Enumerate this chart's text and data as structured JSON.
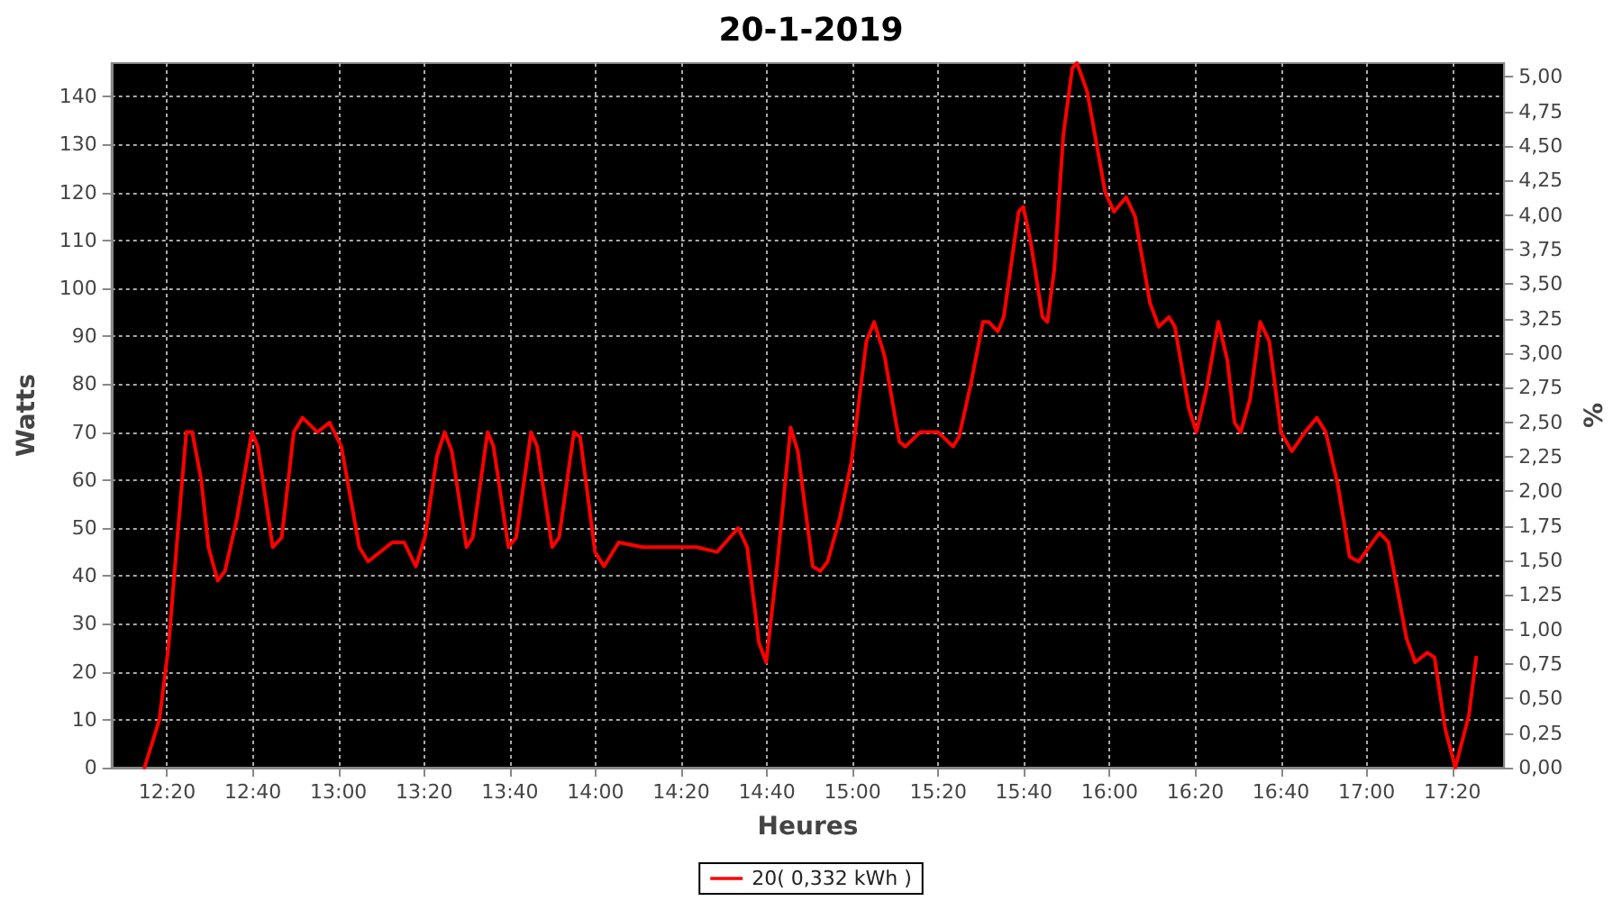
{
  "chart_data": {
    "type": "line",
    "title": "20-1-2019",
    "xlabel": "Heures",
    "ylabel": "Watts",
    "y2label": "%",
    "x": [
      12.245,
      12.303,
      12.338,
      12.373,
      12.408,
      12.431,
      12.466,
      12.494,
      12.53,
      12.558,
      12.605,
      12.663,
      12.686,
      12.744,
      12.779,
      12.826,
      12.86,
      12.918,
      12.965,
      13.011,
      13.081,
      13.115,
      13.209,
      13.255,
      13.301,
      13.336,
      13.383,
      13.413,
      13.441,
      13.498,
      13.522,
      13.58,
      13.603,
      13.661,
      13.691,
      13.749,
      13.773,
      13.831,
      13.858,
      13.916,
      13.94,
      13.998,
      14.033,
      14.09,
      14.184,
      14.393,
      14.473,
      14.555,
      14.59,
      14.636,
      14.664,
      14.706,
      14.759,
      14.787,
      14.845,
      14.875,
      14.903,
      14.95,
      14.996,
      15.054,
      15.084,
      15.124,
      15.182,
      15.205,
      15.263,
      15.333,
      15.391,
      15.414,
      15.46,
      15.507,
      15.53,
      15.565,
      15.588,
      15.646,
      15.664,
      15.692,
      15.739,
      15.758,
      15.785,
      15.82,
      15.855,
      15.873,
      15.913,
      15.983,
      16.017,
      16.064,
      16.099,
      16.157,
      16.191,
      16.231,
      16.254,
      16.308,
      16.338,
      16.377,
      16.423,
      16.458,
      16.486,
      16.51,
      16.547,
      16.586,
      16.621,
      16.667,
      16.709,
      16.76,
      16.806,
      16.841,
      16.888,
      16.934,
      16.969,
      17.05,
      17.085,
      17.155,
      17.189,
      17.236,
      17.264,
      17.306,
      17.345,
      17.398,
      17.426
    ],
    "series": [
      {
        "name": "20( 0,332 kWh )",
        "color": "#ff0000",
        "values": [
          0,
          10,
          25,
          48,
          70,
          70,
          60,
          46,
          39,
          41,
          52,
          70,
          67,
          46,
          48,
          70,
          73,
          70,
          72,
          67,
          46,
          43,
          47,
          47,
          42,
          48,
          65,
          70,
          66,
          46,
          48,
          70,
          67,
          46,
          48,
          70,
          67,
          46,
          48,
          70,
          69,
          45,
          42,
          47,
          46,
          46,
          45,
          50,
          46,
          26,
          22,
          42,
          71,
          66,
          42,
          41,
          43,
          52,
          64,
          89,
          93,
          86,
          68,
          67,
          70,
          70,
          67,
          69,
          80,
          93,
          93,
          91,
          94,
          116,
          117,
          110,
          94,
          93,
          104,
          132,
          146,
          147,
          141,
          120,
          116,
          119,
          115,
          97,
          92,
          94,
          92,
          75,
          70,
          79,
          93,
          85,
          72,
          70,
          77,
          93,
          89,
          70,
          66,
          70,
          73,
          70,
          59,
          44,
          43,
          49,
          47,
          27,
          22,
          24,
          23,
          8,
          0,
          11,
          23
        ]
      }
    ],
    "xlim": [
      12.117,
      17.535
    ],
    "xticks": [
      {
        "value": 12.3333,
        "label": "12:20"
      },
      {
        "value": 12.6667,
        "label": "12:40"
      },
      {
        "value": 13,
        "label": "13:00"
      },
      {
        "value": 13.3333,
        "label": "13:20"
      },
      {
        "value": 13.6667,
        "label": "13:40"
      },
      {
        "value": 14,
        "label": "14:00"
      },
      {
        "value": 14.3333,
        "label": "14:20"
      },
      {
        "value": 14.6667,
        "label": "14:40"
      },
      {
        "value": 15,
        "label": "15:00"
      },
      {
        "value": 15.3333,
        "label": "15:20"
      },
      {
        "value": 15.6667,
        "label": "15:40"
      },
      {
        "value": 16,
        "label": "16:00"
      },
      {
        "value": 16.3333,
        "label": "16:20"
      },
      {
        "value": 16.6667,
        "label": "16:40"
      },
      {
        "value": 17,
        "label": "17:00"
      },
      {
        "value": 17.3333,
        "label": "17:20"
      }
    ],
    "ylim": [
      0,
      147
    ],
    "yticks": [
      0,
      10,
      20,
      30,
      40,
      50,
      60,
      70,
      80,
      90,
      100,
      110,
      120,
      130,
      140
    ],
    "y2lim": [
      0,
      5.1
    ],
    "y2ticks": [
      {
        "value": 0,
        "label": "0,00"
      },
      {
        "value": 0.25,
        "label": "0,25"
      },
      {
        "value": 0.5,
        "label": "0,50"
      },
      {
        "value": 0.75,
        "label": "0,75"
      },
      {
        "value": 1,
        "label": "1,00"
      },
      {
        "value": 1.25,
        "label": "1,25"
      },
      {
        "value": 1.5,
        "label": "1,50"
      },
      {
        "value": 1.75,
        "label": "1,75"
      },
      {
        "value": 2,
        "label": "2,00"
      },
      {
        "value": 2.25,
        "label": "2,25"
      },
      {
        "value": 2.5,
        "label": "2,50"
      },
      {
        "value": 2.75,
        "label": "2,75"
      },
      {
        "value": 3,
        "label": "3,00"
      },
      {
        "value": 3.25,
        "label": "3,25"
      },
      {
        "value": 3.5,
        "label": "3,50"
      },
      {
        "value": 3.75,
        "label": "3,75"
      },
      {
        "value": 4,
        "label": "4,00"
      },
      {
        "value": 4.25,
        "label": "4,25"
      },
      {
        "value": 4.5,
        "label": "4,50"
      },
      {
        "value": 4.75,
        "label": "4,75"
      },
      {
        "value": 5,
        "label": "5,00"
      }
    ],
    "grid": true,
    "legend": "bottom",
    "marker": "none",
    "line_style": "solid"
  }
}
